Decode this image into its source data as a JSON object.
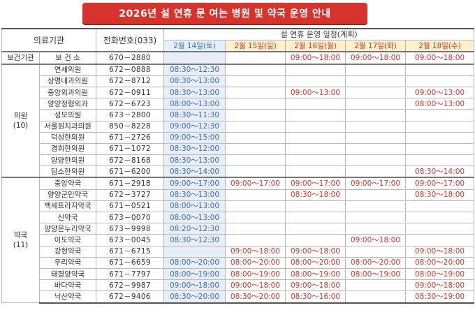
{
  "title": "2026년 설 연휴 문 여는 병원 및 약국 운영 안내",
  "headers": {
    "facility": "의료기관",
    "phone": "전화번호(033)",
    "schedule": "설 연휴 운영 일정(계획)",
    "dates": [
      "2월 14일(토)",
      "2월 15일(일)",
      "2월 16일(월)",
      "2월 17일(화)",
      "2월 18일(수)"
    ]
  },
  "groups": [
    {
      "category": "보건기관",
      "rows": [
        {
          "name": "보 건 소",
          "phone": "670－2880",
          "hours": [
            "",
            "",
            "09:00～18:00",
            "09:00～18:00",
            "09:00～18:00"
          ]
        }
      ]
    },
    {
      "category": "의원",
      "count": "(10)",
      "rows": [
        {
          "name": "연세의원",
          "phone": "672－0888",
          "hours": [
            "08:30～12:30",
            "",
            "",
            "",
            ""
          ]
        },
        {
          "name": "상명내과의원",
          "phone": "672－8712",
          "hours": [
            "08:30～13:00",
            "",
            "",
            "",
            ""
          ]
        },
        {
          "name": "중앙외과의원",
          "phone": "672－0911",
          "hours": [
            "08:30～13:00",
            "",
            "09:00～13:00",
            "",
            "09:00～13:00"
          ]
        },
        {
          "name": "양양정형외과",
          "phone": "672－6723",
          "hours": [
            "08:00～13:00",
            "",
            "",
            "",
            "08:00～13:00"
          ]
        },
        {
          "name": "성모의원",
          "phone": "673－2800",
          "hours": [
            "08:30～11:30",
            "",
            "",
            "",
            ""
          ]
        },
        {
          "name": "서울원치과의원",
          "phone": "850－8228",
          "hours": [
            "09:00～12:30",
            "",
            "",
            "",
            ""
          ]
        },
        {
          "name": "덕성한의원",
          "phone": "671－2726",
          "hours": [
            "09:00～15:00",
            "",
            "",
            "",
            ""
          ]
        },
        {
          "name": "경희한의원",
          "phone": "671－1072",
          "hours": [
            "08:30～12:00",
            "",
            "",
            "",
            ""
          ]
        },
        {
          "name": "양양한의원",
          "phone": "672－8168",
          "hours": [
            "08:30～13:00",
            "",
            "",
            "",
            ""
          ]
        },
        {
          "name": "담소한의원",
          "phone": "671－6200",
          "hours": [
            "08:30～14:00",
            "",
            "",
            "",
            "08:30～14:00"
          ]
        }
      ]
    },
    {
      "category": "약국",
      "count": "(11)",
      "rows": [
        {
          "name": "중앙약국",
          "phone": "671－2918",
          "hours": [
            "09:00～17:00",
            "09:00～17:00",
            "09:00～17:00",
            "09:00～17:00",
            "09:00～17:00"
          ]
        },
        {
          "name": "양양군민약국",
          "phone": "672－3727",
          "hours": [
            "08:30～13:00",
            "",
            "08:30～18:00",
            "",
            "08:30～18:00"
          ]
        },
        {
          "name": "백세프라자약국",
          "phone": "671－0521",
          "hours": [
            "08:00～13:00",
            "",
            "",
            "",
            ""
          ]
        },
        {
          "name": "신약국",
          "phone": "673－0070",
          "hours": [
            "08:00～13:00",
            "",
            "",
            "",
            ""
          ]
        },
        {
          "name": "양양온누리약국",
          "phone": "673－9998",
          "hours": [
            "08:20～12:30",
            "",
            "",
            "",
            ""
          ]
        },
        {
          "name": "이도약국",
          "phone": "673－0045",
          "hours": [
            "08:30～12:30",
            "",
            "",
            "09:00～18:00",
            ""
          ]
        },
        {
          "name": "강현약국",
          "phone": "671－6715",
          "hours": [
            "",
            "09:00～18:00",
            "09:00～18:00",
            "",
            "09:00～18:00"
          ]
        },
        {
          "name": "우리약국",
          "phone": "671－6659",
          "hours": [
            "08:00～20:00",
            "08:00～20:00",
            "08:00～20:00",
            "08:00～20:00",
            "08:00～20:00"
          ]
        },
        {
          "name": "태평양약국",
          "phone": "671－7797",
          "hours": [
            "08:00～19:00",
            "08:00～19:00",
            "08:00～19:00",
            "08:00～19:00",
            "08:00～19:00"
          ]
        },
        {
          "name": "바다약국",
          "phone": "672－9987",
          "hours": [
            "09:00～18:00",
            "09:00～18:00",
            "09:00～18:00",
            "",
            "09:00～18:00"
          ]
        },
        {
          "name": "낙산약국",
          "phone": "672－9406",
          "hours": [
            "08:30～20:00",
            "08:30～20:00",
            "08:30～16:00",
            "",
            "08:30～19:00"
          ]
        }
      ]
    }
  ]
}
